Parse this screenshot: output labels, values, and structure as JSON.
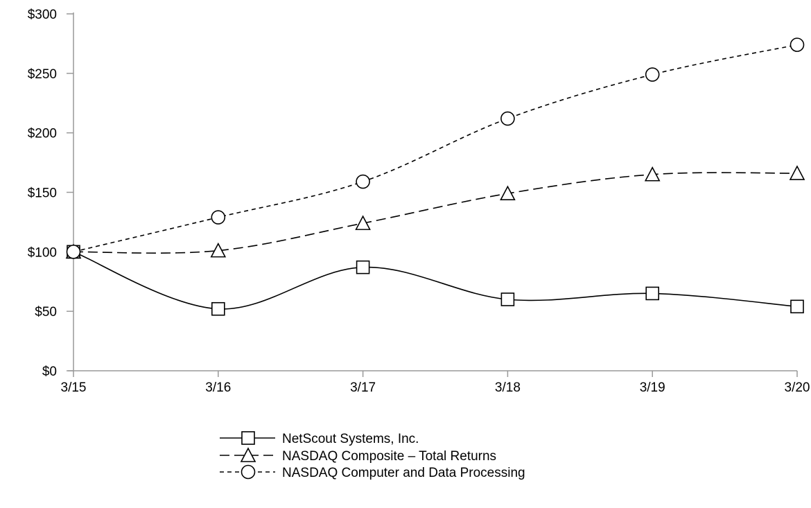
{
  "chart_data": {
    "type": "line",
    "title": "",
    "xlabel": "",
    "ylabel": "",
    "categories": [
      "3/15",
      "3/16",
      "3/17",
      "3/18",
      "3/19",
      "3/20"
    ],
    "ylim": [
      0,
      300
    ],
    "yticks": [
      0,
      50,
      100,
      150,
      200,
      250,
      300
    ],
    "ytick_labels": [
      "$0",
      "$50",
      "$100",
      "$150",
      "$200",
      "$250",
      "$300"
    ],
    "grid": false,
    "legend_position": "bottom-center",
    "series": [
      {
        "name": "NetScout Systems, Inc.",
        "marker": "square",
        "dash": "solid",
        "values": [
          100,
          52,
          87,
          60,
          65,
          54
        ]
      },
      {
        "name": "NASDAQ Composite – Total Returns",
        "marker": "triangle",
        "dash": "long-dash",
        "values": [
          100,
          101,
          124,
          149,
          165,
          166
        ]
      },
      {
        "name": "NASDAQ Computer and Data Processing",
        "marker": "circle",
        "dash": "short-dash",
        "values": [
          100,
          129,
          159,
          212,
          249,
          274
        ]
      }
    ]
  }
}
